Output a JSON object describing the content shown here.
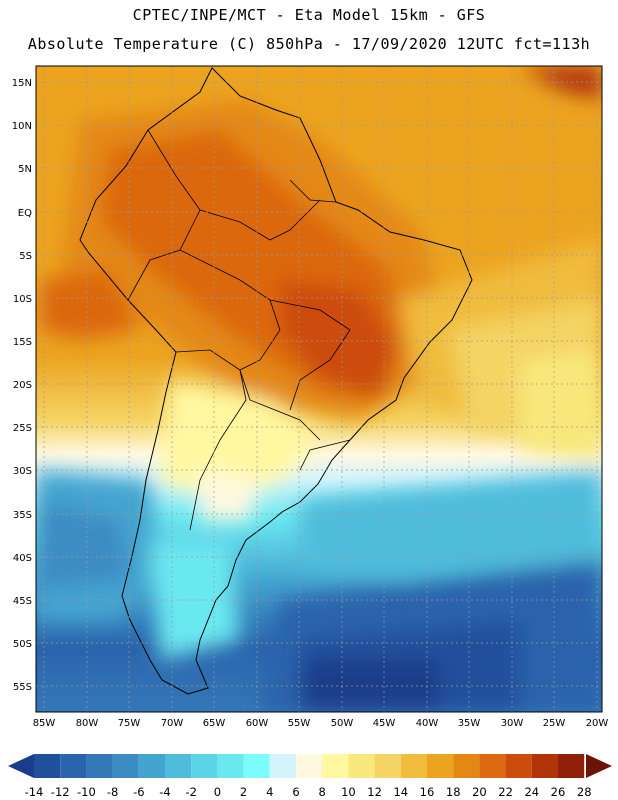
{
  "header": {
    "line1": "CPTEC/INPE/MCT -  Eta Model 15km - GFS",
    "line2": "Absolute Temperature (C) 850hPa - 17/09/2020 12UTC fct=113h"
  },
  "map": {
    "lat_labels": [
      "15N",
      "10N",
      "5N",
      "EQ",
      "5S",
      "10S",
      "15S",
      "20S",
      "25S",
      "30S",
      "35S",
      "40S",
      "45S",
      "50S",
      "55S"
    ],
    "lon_labels": [
      "85W",
      "80W",
      "75W",
      "70W",
      "65W",
      "60W",
      "55W",
      "50W",
      "45W",
      "40W",
      "35W",
      "30W",
      "25W",
      "20W"
    ]
  },
  "colorbar": {
    "labels": [
      "-14",
      "-12",
      "-10",
      "-8",
      "-6",
      "-4",
      "-2",
      "0",
      "2",
      "4",
      "6",
      "8",
      "10",
      "12",
      "14",
      "16",
      "18",
      "20",
      "22",
      "24",
      "26",
      "28"
    ],
    "colors": [
      "#1a3c8a",
      "#20509c",
      "#2a64ac",
      "#3478b8",
      "#3c8cc4",
      "#44a4d0",
      "#50bcdc",
      "#5cd4e8",
      "#6ae8f0",
      "#7cfcfc",
      "#d4f4fc",
      "#fff8e0",
      "#fff8a0",
      "#f8e87c",
      "#f4d464",
      "#f0bc3c",
      "#eca420",
      "#e48814",
      "#dc6810",
      "#cc4c0c",
      "#b03408",
      "#902008",
      "#6c1408"
    ]
  }
}
